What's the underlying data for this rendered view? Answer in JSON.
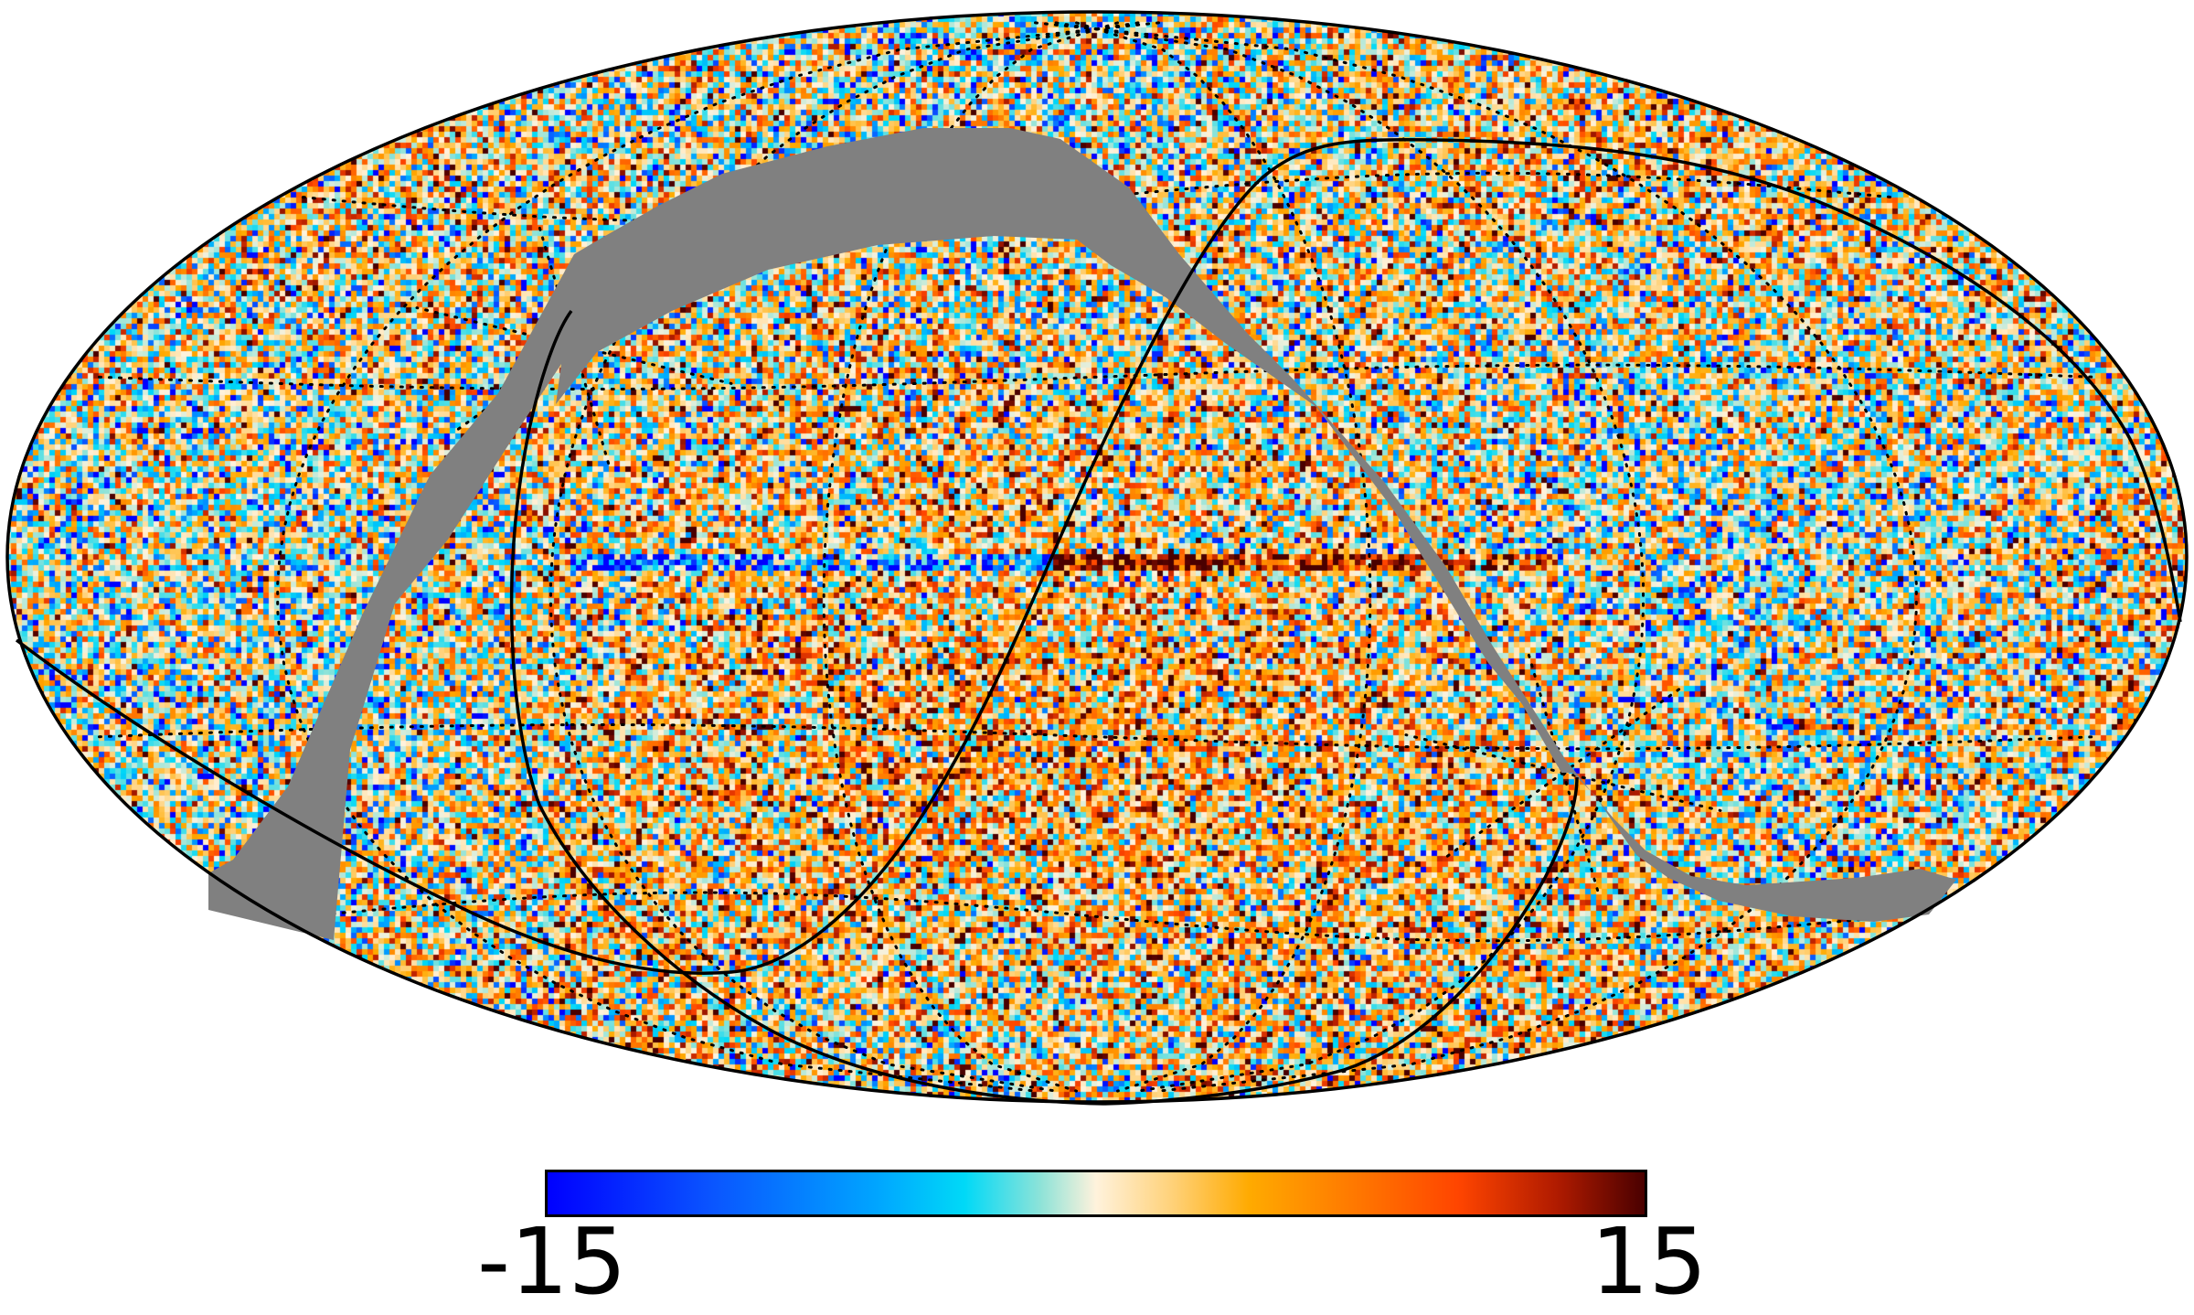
{
  "colorbar": {
    "min_label": "-15",
    "max_label": "15",
    "min_value": -15,
    "max_value": 15,
    "colormap": [
      "#0000ff",
      "#0a55ff",
      "#00a5ff",
      "#00d9f7",
      "#8fe3d8",
      "#fff2dc",
      "#ffd178",
      "#ffaa00",
      "#ff7600",
      "#ff4500",
      "#b01b00",
      "#4a0000"
    ]
  },
  "map": {
    "projection": "mollweide",
    "mask_color": "#808080",
    "outline_color": "#000000",
    "graticule_style": "dotted"
  }
}
